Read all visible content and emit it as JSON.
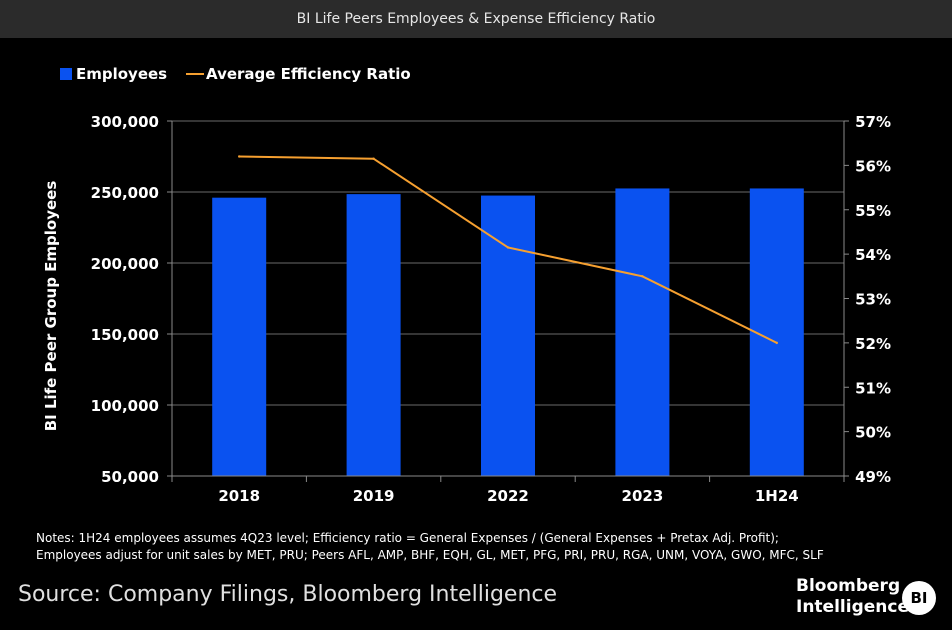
{
  "window": {
    "title": "BI Life Peers Employees & Expense Efficiency Ratio"
  },
  "chart_data": {
    "type": "bar",
    "categories": [
      "2018",
      "2019",
      "2022",
      "2023",
      "1H24"
    ],
    "series": [
      {
        "name": "Employees",
        "kind": "bar",
        "axis": "left",
        "color": "#0a52f0",
        "values": [
          246000,
          248500,
          247500,
          252500,
          252500
        ]
      },
      {
        "name": "Average Efficiency Ratio",
        "kind": "line",
        "axis": "right",
        "color": "#f6a030",
        "values": [
          56.2,
          56.15,
          54.15,
          53.5,
          52.0
        ]
      }
    ],
    "title": "BI Life Peers Employees & Expense Efficiency Ratio",
    "ylabel": "BI Life Peer Group Employees",
    "ylim": [
      50000,
      300000
    ],
    "yticks": [
      "50,000",
      "100,000",
      "150,000",
      "200,000",
      "250,000",
      "300,000"
    ],
    "y2lim": [
      49,
      57
    ],
    "y2ticks": [
      "49%",
      "50%",
      "51%",
      "52%",
      "53%",
      "54%",
      "55%",
      "56%",
      "57%"
    ],
    "legend_position": "top-left"
  },
  "notes": {
    "line1": "Notes: 1H24 employees assumes 4Q23 level; Efficiency ratio = General Expenses / (General Expenses + Pretax Adj. Profit);",
    "line2": "Employees adjust for unit sales by MET, PRU; Peers AFL, AMP, BHF, EQH, GL, MET, PFG, PRI, PRU, RGA, UNM, VOYA, GWO, MFC, SLF"
  },
  "source": "Source: Company Filings, Bloomberg Intelligence",
  "brand": {
    "line1": "Bloomberg",
    "line2": "Intelligence",
    "logo": "BI"
  }
}
